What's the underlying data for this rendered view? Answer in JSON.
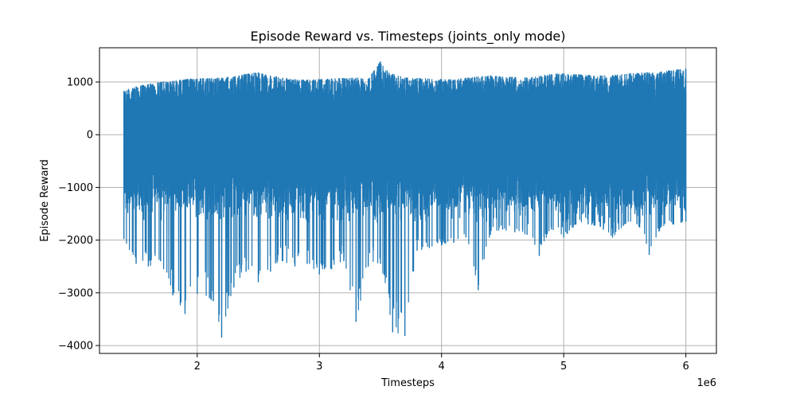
{
  "chart_data": {
    "type": "line",
    "title": "Episode Reward vs. Timesteps (joints_only mode)",
    "xlabel": "Timesteps",
    "ylabel": "Episode Reward",
    "x_offset_label": "1e6",
    "xlim": [
      1.2,
      6.25
    ],
    "ylim": [
      -4150,
      1650
    ],
    "xticks": [
      2,
      3,
      4,
      5,
      6
    ],
    "xtick_labels": [
      "2",
      "3",
      "4",
      "5",
      "6"
    ],
    "yticks": [
      1000,
      0,
      -1000,
      -2000,
      -3000,
      -4000
    ],
    "ytick_labels": [
      "1000",
      "0",
      "−1000",
      "−2000",
      "−3000",
      "−4000"
    ],
    "grid": true,
    "color": "#1f77b4",
    "series": [
      {
        "x": [
          1.4,
          1.5,
          1.6,
          1.7,
          1.8,
          1.9,
          2.0,
          2.1,
          2.2,
          2.3,
          2.4,
          2.5,
          2.6,
          2.7,
          2.8,
          2.9,
          3.0,
          3.1,
          3.2,
          3.3,
          3.4,
          3.5,
          3.6,
          3.7,
          3.8,
          3.9,
          4.0,
          4.1,
          4.2,
          4.3,
          4.4,
          4.5,
          4.6,
          4.7,
          4.8,
          4.9,
          5.0,
          5.1,
          5.2,
          5.3,
          5.4,
          5.5,
          5.6,
          5.7,
          5.8,
          5.9,
          6.0
        ],
        "y_max": [
          830,
          920,
          960,
          1000,
          1020,
          1050,
          1060,
          1070,
          1080,
          1100,
          1150,
          1180,
          1120,
          1080,
          1050,
          1040,
          1050,
          1060,
          1070,
          1080,
          1060,
          1390,
          1150,
          1080,
          1070,
          1060,
          1050,
          1040,
          1080,
          1100,
          1120,
          1100,
          1090,
          1080,
          1110,
          1150,
          1160,
          1140,
          1130,
          1120,
          1130,
          1150,
          1170,
          1180,
          1200,
          1220,
          1250
        ],
        "y_min": [
          -1980,
          -2450,
          -2500,
          -2400,
          -3050,
          -3400,
          -3020,
          -3100,
          -3850,
          -2900,
          -2600,
          -2800,
          -2600,
          -2400,
          -2500,
          -2450,
          -2650,
          -2550,
          -2400,
          -3550,
          -2500,
          -2450,
          -3750,
          -3820,
          -2200,
          -2150,
          -2100,
          -2050,
          -1950,
          -2950,
          -1900,
          -1800,
          -1850,
          -1900,
          -2300,
          -1800,
          -1950,
          -1700,
          -1700,
          -1750,
          -1950,
          -1700,
          -1700,
          -2280,
          -1750,
          -1700,
          -1650
        ]
      }
    ]
  }
}
